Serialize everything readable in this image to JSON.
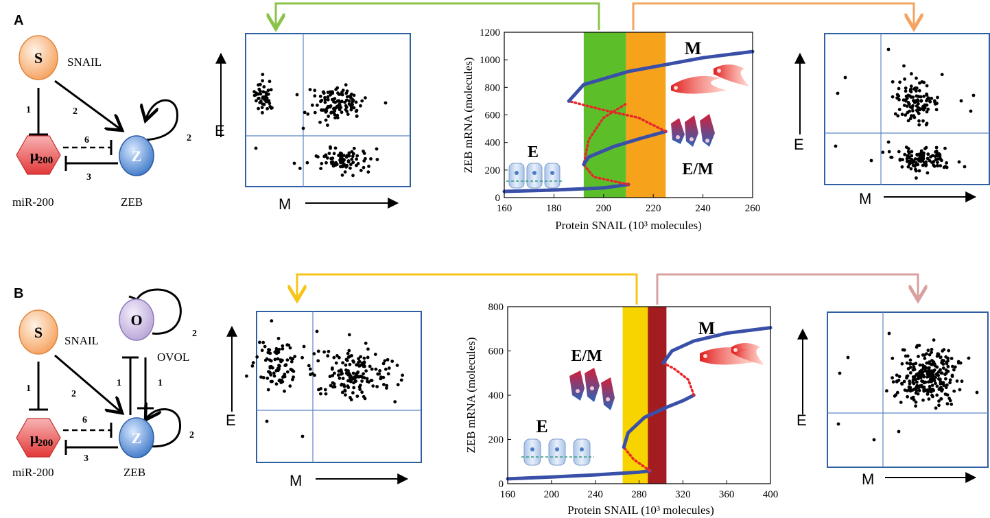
{
  "panels": [
    {
      "label": "A",
      "network": {
        "nodes": {
          "snail": "S",
          "zeb": "Z",
          "mir_symbol": "μ",
          "mir_sub": "200"
        },
        "names": {
          "snail": "SNAIL",
          "zeb": "ZEB",
          "mir": "miR-200"
        },
        "edge_numbers": [
          "1",
          "2",
          "6",
          "3",
          "2"
        ]
      },
      "left_scatter": {
        "xlabel": "M",
        "ylabel": "E",
        "color": "#8bc34a"
      },
      "right_scatter": {
        "xlabel": "M",
        "ylabel": "E",
        "color": "#f4a460"
      }
    },
    {
      "label": "B",
      "network": {
        "nodes": {
          "snail": "S",
          "zeb": "Z",
          "ovol": "O",
          "mir_symbol": "μ",
          "mir_sub": "200"
        },
        "names": {
          "snail": "SNAIL",
          "zeb": "ZEB",
          "ovol": "OVOL",
          "mir": "miR-200"
        },
        "edge_numbers": [
          "1",
          "2",
          "6",
          "3",
          "2",
          "1",
          "1",
          "2"
        ]
      },
      "left_scatter": {
        "xlabel": "M",
        "ylabel": "E",
        "color": "#f5c518"
      },
      "right_scatter": {
        "xlabel": "M",
        "ylabel": "E",
        "color": "#d8a0a0"
      }
    }
  ],
  "chart_data": [
    {
      "type": "line",
      "title": "",
      "xlabel": "Protein SNAIL (10³ molecules)",
      "ylabel": "ZEB mRNA (molecules)",
      "xlim": [
        160,
        260
      ],
      "ylim": [
        0,
        1200
      ],
      "xticks": [
        "160",
        "180",
        "200",
        "220",
        "240",
        "260"
      ],
      "yticks": [
        "0",
        "200",
        "400",
        "600",
        "800",
        "1000",
        "1200"
      ],
      "bands": [
        {
          "from": 192,
          "to": 209,
          "color": "#5cbf2a"
        },
        {
          "from": 209,
          "to": 225,
          "color": "#f7a21b"
        }
      ],
      "state_labels": [
        "E",
        "E/M",
        "M"
      ],
      "series": [
        {
          "name": "stable-low",
          "style": "solid",
          "color": "#3a4fa8",
          "x": [
            160,
            180,
            200,
            210
          ],
          "y": [
            45,
            55,
            70,
            95
          ]
        },
        {
          "name": "unstable-1",
          "style": "dotted",
          "color": "#e8262a",
          "x": [
            210,
            196,
            192,
            194,
            200,
            209
          ],
          "y": [
            95,
            150,
            240,
            420,
            580,
            680
          ]
        },
        {
          "name": "stable-mid",
          "style": "solid",
          "color": "#3a4fa8",
          "x": [
            192,
            194,
            204,
            215,
            225
          ],
          "y": [
            240,
            295,
            370,
            430,
            480
          ]
        },
        {
          "name": "unstable-2",
          "style": "dotted",
          "color": "#e8262a",
          "x": [
            225,
            214,
            199,
            186
          ],
          "y": [
            480,
            580,
            640,
            700
          ]
        },
        {
          "name": "stable-high",
          "style": "solid",
          "color": "#3a4fa8",
          "x": [
            186,
            192,
            210,
            225,
            240,
            260
          ],
          "y": [
            700,
            820,
            915,
            965,
            1015,
            1060
          ]
        }
      ]
    },
    {
      "type": "line",
      "title": "",
      "xlabel": "Protein SNAIL (10³ molecules)",
      "ylabel": "ZEB mRNA (molecules)",
      "xlim": [
        160,
        400
      ],
      "ylim": [
        0,
        800
      ],
      "xticks": [
        "160",
        "200",
        "240",
        "280",
        "320",
        "360",
        "400"
      ],
      "yticks": [
        "0",
        "200",
        "400",
        "600",
        "800"
      ],
      "bands": [
        {
          "from": 265,
          "to": 288,
          "color": "#f7d300"
        },
        {
          "from": 288,
          "to": 305,
          "color": "#a31d20"
        }
      ],
      "state_labels": [
        "E",
        "E/M",
        "M"
      ],
      "series": [
        {
          "name": "stable-low",
          "style": "solid",
          "color": "#3a4fa8",
          "x": [
            160,
            200,
            240,
            280,
            290
          ],
          "y": [
            22,
            30,
            40,
            52,
            58
          ]
        },
        {
          "name": "unstable-1",
          "style": "dotted",
          "color": "#e8262a",
          "x": [
            290,
            275,
            266
          ],
          "y": [
            58,
            110,
            165
          ]
        },
        {
          "name": "stable-mid",
          "style": "solid",
          "color": "#3a4fa8",
          "x": [
            266,
            270,
            285,
            305,
            320,
            330
          ],
          "y": [
            165,
            230,
            300,
            345,
            375,
            400
          ]
        },
        {
          "name": "unstable-2",
          "style": "dotted",
          "color": "#e8262a",
          "x": [
            330,
            325,
            312,
            302
          ],
          "y": [
            400,
            470,
            520,
            545
          ]
        },
        {
          "name": "stable-high",
          "style": "solid",
          "color": "#3a4fa8",
          "x": [
            302,
            310,
            330,
            360,
            400
          ],
          "y": [
            545,
            600,
            645,
            680,
            705
          ]
        }
      ]
    }
  ]
}
